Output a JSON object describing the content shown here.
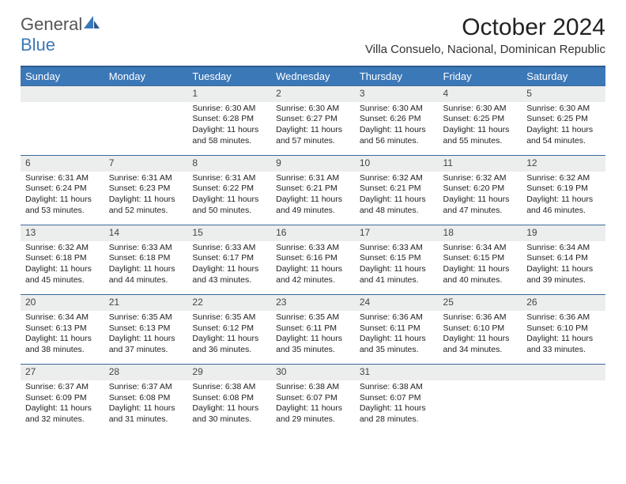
{
  "brand": {
    "name_part1": "General",
    "name_part2": "Blue"
  },
  "title": "October 2024",
  "location": "Villa Consuelo, Nacional, Dominican Republic",
  "colors": {
    "header_bg": "#3b78b8",
    "header_text": "#ffffff",
    "row_border": "#3b6a9a",
    "daynum_bg": "#eceded",
    "body_text": "#222222",
    "page_bg": "#ffffff"
  },
  "typography": {
    "title_fontsize": 30,
    "location_fontsize": 15,
    "dayheader_fontsize": 13,
    "cell_fontsize": 10.5
  },
  "day_headers": [
    "Sunday",
    "Monday",
    "Tuesday",
    "Wednesday",
    "Thursday",
    "Friday",
    "Saturday"
  ],
  "weeks": [
    {
      "nums": [
        "",
        "",
        "1",
        "2",
        "3",
        "4",
        "5"
      ],
      "cells": [
        {
          "sunrise": "",
          "sunset": "",
          "daylight": ""
        },
        {
          "sunrise": "",
          "sunset": "",
          "daylight": ""
        },
        {
          "sunrise": "Sunrise: 6:30 AM",
          "sunset": "Sunset: 6:28 PM",
          "daylight": "Daylight: 11 hours and 58 minutes."
        },
        {
          "sunrise": "Sunrise: 6:30 AM",
          "sunset": "Sunset: 6:27 PM",
          "daylight": "Daylight: 11 hours and 57 minutes."
        },
        {
          "sunrise": "Sunrise: 6:30 AM",
          "sunset": "Sunset: 6:26 PM",
          "daylight": "Daylight: 11 hours and 56 minutes."
        },
        {
          "sunrise": "Sunrise: 6:30 AM",
          "sunset": "Sunset: 6:25 PM",
          "daylight": "Daylight: 11 hours and 55 minutes."
        },
        {
          "sunrise": "Sunrise: 6:30 AM",
          "sunset": "Sunset: 6:25 PM",
          "daylight": "Daylight: 11 hours and 54 minutes."
        }
      ]
    },
    {
      "nums": [
        "6",
        "7",
        "8",
        "9",
        "10",
        "11",
        "12"
      ],
      "cells": [
        {
          "sunrise": "Sunrise: 6:31 AM",
          "sunset": "Sunset: 6:24 PM",
          "daylight": "Daylight: 11 hours and 53 minutes."
        },
        {
          "sunrise": "Sunrise: 6:31 AM",
          "sunset": "Sunset: 6:23 PM",
          "daylight": "Daylight: 11 hours and 52 minutes."
        },
        {
          "sunrise": "Sunrise: 6:31 AM",
          "sunset": "Sunset: 6:22 PM",
          "daylight": "Daylight: 11 hours and 50 minutes."
        },
        {
          "sunrise": "Sunrise: 6:31 AM",
          "sunset": "Sunset: 6:21 PM",
          "daylight": "Daylight: 11 hours and 49 minutes."
        },
        {
          "sunrise": "Sunrise: 6:32 AM",
          "sunset": "Sunset: 6:21 PM",
          "daylight": "Daylight: 11 hours and 48 minutes."
        },
        {
          "sunrise": "Sunrise: 6:32 AM",
          "sunset": "Sunset: 6:20 PM",
          "daylight": "Daylight: 11 hours and 47 minutes."
        },
        {
          "sunrise": "Sunrise: 6:32 AM",
          "sunset": "Sunset: 6:19 PM",
          "daylight": "Daylight: 11 hours and 46 minutes."
        }
      ]
    },
    {
      "nums": [
        "13",
        "14",
        "15",
        "16",
        "17",
        "18",
        "19"
      ],
      "cells": [
        {
          "sunrise": "Sunrise: 6:32 AM",
          "sunset": "Sunset: 6:18 PM",
          "daylight": "Daylight: 11 hours and 45 minutes."
        },
        {
          "sunrise": "Sunrise: 6:33 AM",
          "sunset": "Sunset: 6:18 PM",
          "daylight": "Daylight: 11 hours and 44 minutes."
        },
        {
          "sunrise": "Sunrise: 6:33 AM",
          "sunset": "Sunset: 6:17 PM",
          "daylight": "Daylight: 11 hours and 43 minutes."
        },
        {
          "sunrise": "Sunrise: 6:33 AM",
          "sunset": "Sunset: 6:16 PM",
          "daylight": "Daylight: 11 hours and 42 minutes."
        },
        {
          "sunrise": "Sunrise: 6:33 AM",
          "sunset": "Sunset: 6:15 PM",
          "daylight": "Daylight: 11 hours and 41 minutes."
        },
        {
          "sunrise": "Sunrise: 6:34 AM",
          "sunset": "Sunset: 6:15 PM",
          "daylight": "Daylight: 11 hours and 40 minutes."
        },
        {
          "sunrise": "Sunrise: 6:34 AM",
          "sunset": "Sunset: 6:14 PM",
          "daylight": "Daylight: 11 hours and 39 minutes."
        }
      ]
    },
    {
      "nums": [
        "20",
        "21",
        "22",
        "23",
        "24",
        "25",
        "26"
      ],
      "cells": [
        {
          "sunrise": "Sunrise: 6:34 AM",
          "sunset": "Sunset: 6:13 PM",
          "daylight": "Daylight: 11 hours and 38 minutes."
        },
        {
          "sunrise": "Sunrise: 6:35 AM",
          "sunset": "Sunset: 6:13 PM",
          "daylight": "Daylight: 11 hours and 37 minutes."
        },
        {
          "sunrise": "Sunrise: 6:35 AM",
          "sunset": "Sunset: 6:12 PM",
          "daylight": "Daylight: 11 hours and 36 minutes."
        },
        {
          "sunrise": "Sunrise: 6:35 AM",
          "sunset": "Sunset: 6:11 PM",
          "daylight": "Daylight: 11 hours and 35 minutes."
        },
        {
          "sunrise": "Sunrise: 6:36 AM",
          "sunset": "Sunset: 6:11 PM",
          "daylight": "Daylight: 11 hours and 35 minutes."
        },
        {
          "sunrise": "Sunrise: 6:36 AM",
          "sunset": "Sunset: 6:10 PM",
          "daylight": "Daylight: 11 hours and 34 minutes."
        },
        {
          "sunrise": "Sunrise: 6:36 AM",
          "sunset": "Sunset: 6:10 PM",
          "daylight": "Daylight: 11 hours and 33 minutes."
        }
      ]
    },
    {
      "nums": [
        "27",
        "28",
        "29",
        "30",
        "31",
        "",
        ""
      ],
      "cells": [
        {
          "sunrise": "Sunrise: 6:37 AM",
          "sunset": "Sunset: 6:09 PM",
          "daylight": "Daylight: 11 hours and 32 minutes."
        },
        {
          "sunrise": "Sunrise: 6:37 AM",
          "sunset": "Sunset: 6:08 PM",
          "daylight": "Daylight: 11 hours and 31 minutes."
        },
        {
          "sunrise": "Sunrise: 6:38 AM",
          "sunset": "Sunset: 6:08 PM",
          "daylight": "Daylight: 11 hours and 30 minutes."
        },
        {
          "sunrise": "Sunrise: 6:38 AM",
          "sunset": "Sunset: 6:07 PM",
          "daylight": "Daylight: 11 hours and 29 minutes."
        },
        {
          "sunrise": "Sunrise: 6:38 AM",
          "sunset": "Sunset: 6:07 PM",
          "daylight": "Daylight: 11 hours and 28 minutes."
        },
        {
          "sunrise": "",
          "sunset": "",
          "daylight": ""
        },
        {
          "sunrise": "",
          "sunset": "",
          "daylight": ""
        }
      ]
    }
  ]
}
